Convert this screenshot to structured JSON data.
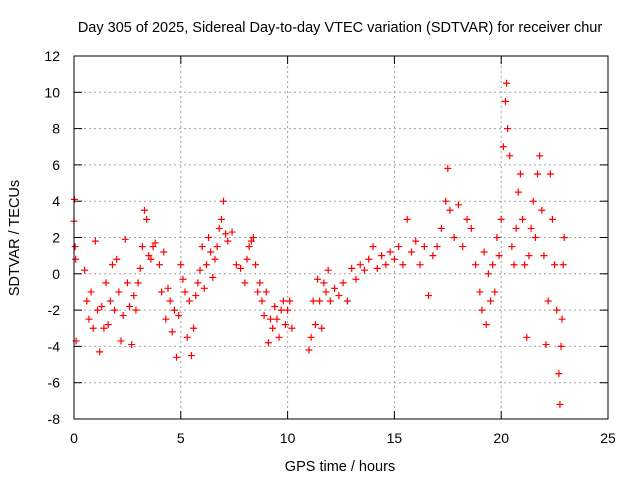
{
  "chart_data": {
    "type": "scatter",
    "title": "Day 305 of 2025, Sidereal Day-to-day VTEC variation (SDTVAR) for receiver chur",
    "xlabel": "GPS time / hours",
    "ylabel": "SDTVAR / TECUs",
    "xlim": [
      0,
      25
    ],
    "ylim": [
      -8,
      12
    ],
    "xticks": [
      0,
      5,
      10,
      15,
      20,
      25
    ],
    "yticks": [
      -8,
      -6,
      -4,
      -2,
      0,
      2,
      4,
      6,
      8,
      10,
      12
    ],
    "grid": true,
    "marker": "+",
    "color": "#ff0000",
    "series": [
      {
        "name": "SDTVAR",
        "points": [
          [
            0.0,
            2.9
          ],
          [
            0.02,
            4.1
          ],
          [
            0.05,
            1.5
          ],
          [
            0.08,
            0.8
          ],
          [
            0.1,
            -3.7
          ],
          [
            0.5,
            0.2
          ],
          [
            0.6,
            -1.5
          ],
          [
            0.7,
            -2.5
          ],
          [
            0.8,
            -1.0
          ],
          [
            0.9,
            -3.0
          ],
          [
            1.0,
            1.8
          ],
          [
            1.1,
            -2.0
          ],
          [
            1.2,
            -4.3
          ],
          [
            1.3,
            -1.8
          ],
          [
            1.4,
            -3.0
          ],
          [
            1.5,
            -0.5
          ],
          [
            1.6,
            -2.8
          ],
          [
            1.7,
            -1.5
          ],
          [
            1.8,
            0.5
          ],
          [
            1.9,
            -2.0
          ],
          [
            2.0,
            0.8
          ],
          [
            2.1,
            -1.0
          ],
          [
            2.2,
            -3.7
          ],
          [
            2.3,
            -2.3
          ],
          [
            2.4,
            1.9
          ],
          [
            2.5,
            -0.5
          ],
          [
            2.6,
            -1.8
          ],
          [
            2.7,
            -3.9
          ],
          [
            2.8,
            -1.2
          ],
          [
            2.9,
            -2.0
          ],
          [
            3.0,
            -0.5
          ],
          [
            3.1,
            0.3
          ],
          [
            3.2,
            1.5
          ],
          [
            3.3,
            3.5
          ],
          [
            3.4,
            3.0
          ],
          [
            3.5,
            1.0
          ],
          [
            3.6,
            0.8
          ],
          [
            3.7,
            1.5
          ],
          [
            3.8,
            1.7
          ],
          [
            4.0,
            0.5
          ],
          [
            4.1,
            -1.0
          ],
          [
            4.2,
            1.2
          ],
          [
            4.3,
            -2.5
          ],
          [
            4.4,
            -0.8
          ],
          [
            4.5,
            -1.5
          ],
          [
            4.6,
            -3.2
          ],
          [
            4.7,
            -2.0
          ],
          [
            4.8,
            -4.6
          ],
          [
            4.9,
            -2.3
          ],
          [
            5.0,
            0.5
          ],
          [
            5.1,
            -0.3
          ],
          [
            5.2,
            -1.0
          ],
          [
            5.3,
            -3.5
          ],
          [
            5.4,
            -1.5
          ],
          [
            5.5,
            -4.5
          ],
          [
            5.6,
            -3.0
          ],
          [
            5.7,
            -1.2
          ],
          [
            5.8,
            -0.5
          ],
          [
            5.9,
            0.2
          ],
          [
            6.0,
            1.5
          ],
          [
            6.1,
            -0.8
          ],
          [
            6.2,
            0.5
          ],
          [
            6.3,
            2.0
          ],
          [
            6.4,
            1.2
          ],
          [
            6.5,
            -0.2
          ],
          [
            6.6,
            0.8
          ],
          [
            6.7,
            1.5
          ],
          [
            6.8,
            2.5
          ],
          [
            6.9,
            3.0
          ],
          [
            7.0,
            4.0
          ],
          [
            7.1,
            2.2
          ],
          [
            7.2,
            1.8
          ],
          [
            7.4,
            2.3
          ],
          [
            7.6,
            0.5
          ],
          [
            7.8,
            0.3
          ],
          [
            8.0,
            -0.5
          ],
          [
            8.1,
            0.8
          ],
          [
            8.2,
            1.5
          ],
          [
            8.3,
            1.8
          ],
          [
            8.4,
            2.0
          ],
          [
            8.5,
            0.5
          ],
          [
            8.6,
            -1.0
          ],
          [
            8.7,
            -0.5
          ],
          [
            8.8,
            -1.5
          ],
          [
            8.9,
            -2.3
          ],
          [
            9.0,
            -1.0
          ],
          [
            9.1,
            -3.8
          ],
          [
            9.2,
            -2.5
          ],
          [
            9.3,
            -3.0
          ],
          [
            9.4,
            -1.8
          ],
          [
            9.5,
            -2.5
          ],
          [
            9.6,
            -3.5
          ],
          [
            9.7,
            -2.0
          ],
          [
            9.8,
            -1.5
          ],
          [
            9.9,
            -2.8
          ],
          [
            10.0,
            -2.0
          ],
          [
            10.1,
            -1.5
          ],
          [
            10.2,
            -3.0
          ],
          [
            11.0,
            -4.2
          ],
          [
            11.1,
            -3.5
          ],
          [
            11.2,
            -1.5
          ],
          [
            11.3,
            -2.8
          ],
          [
            11.4,
            -0.3
          ],
          [
            11.5,
            -1.5
          ],
          [
            11.6,
            -3.0
          ],
          [
            11.7,
            -0.5
          ],
          [
            11.8,
            -1.0
          ],
          [
            11.9,
            0.2
          ],
          [
            12.0,
            -1.5
          ],
          [
            12.2,
            -0.8
          ],
          [
            12.4,
            -1.2
          ],
          [
            12.6,
            -0.5
          ],
          [
            12.8,
            -1.5
          ],
          [
            13.0,
            0.3
          ],
          [
            13.2,
            -0.3
          ],
          [
            13.4,
            0.5
          ],
          [
            13.6,
            0.2
          ],
          [
            13.8,
            0.8
          ],
          [
            14.0,
            1.5
          ],
          [
            14.2,
            0.3
          ],
          [
            14.4,
            1.0
          ],
          [
            14.6,
            0.5
          ],
          [
            14.8,
            1.2
          ],
          [
            15.0,
            0.8
          ],
          [
            15.2,
            1.5
          ],
          [
            15.4,
            0.5
          ],
          [
            15.6,
            3.0
          ],
          [
            15.8,
            1.2
          ],
          [
            16.0,
            1.8
          ],
          [
            16.2,
            0.5
          ],
          [
            16.4,
            1.5
          ],
          [
            16.6,
            -1.2
          ],
          [
            16.8,
            1.0
          ],
          [
            17.0,
            1.5
          ],
          [
            17.2,
            2.5
          ],
          [
            17.4,
            4.0
          ],
          [
            17.5,
            5.8
          ],
          [
            17.6,
            3.5
          ],
          [
            17.8,
            2.0
          ],
          [
            18.0,
            3.8
          ],
          [
            18.2,
            1.5
          ],
          [
            18.4,
            3.0
          ],
          [
            18.6,
            2.5
          ],
          [
            18.8,
            0.5
          ],
          [
            19.0,
            -1.0
          ],
          [
            19.1,
            -2.0
          ],
          [
            19.2,
            1.2
          ],
          [
            19.3,
            -2.8
          ],
          [
            19.4,
            0.0
          ],
          [
            19.5,
            -1.5
          ],
          [
            19.6,
            0.5
          ],
          [
            19.7,
            -1.0
          ],
          [
            19.8,
            2.0
          ],
          [
            19.9,
            1.0
          ],
          [
            20.0,
            3.0
          ],
          [
            20.1,
            7.0
          ],
          [
            20.2,
            9.5
          ],
          [
            20.25,
            10.5
          ],
          [
            20.3,
            8.0
          ],
          [
            20.4,
            6.5
          ],
          [
            20.5,
            1.5
          ],
          [
            20.6,
            0.5
          ],
          [
            20.7,
            2.5
          ],
          [
            20.8,
            4.5
          ],
          [
            20.9,
            5.5
          ],
          [
            21.0,
            3.0
          ],
          [
            21.1,
            0.5
          ],
          [
            21.2,
            -3.5
          ],
          [
            21.3,
            1.0
          ],
          [
            21.4,
            2.5
          ],
          [
            21.5,
            4.0
          ],
          [
            21.6,
            2.0
          ],
          [
            21.7,
            5.5
          ],
          [
            21.8,
            6.5
          ],
          [
            21.9,
            3.5
          ],
          [
            22.0,
            1.0
          ],
          [
            22.1,
            -3.9
          ],
          [
            22.2,
            -1.5
          ],
          [
            22.3,
            5.5
          ],
          [
            22.4,
            3.0
          ],
          [
            22.5,
            0.5
          ],
          [
            22.6,
            -2.0
          ],
          [
            22.7,
            -5.5
          ],
          [
            22.75,
            -7.2
          ],
          [
            22.8,
            -4.0
          ],
          [
            22.85,
            -2.5
          ],
          [
            22.9,
            0.5
          ],
          [
            22.95,
            2.0
          ]
        ]
      }
    ]
  }
}
